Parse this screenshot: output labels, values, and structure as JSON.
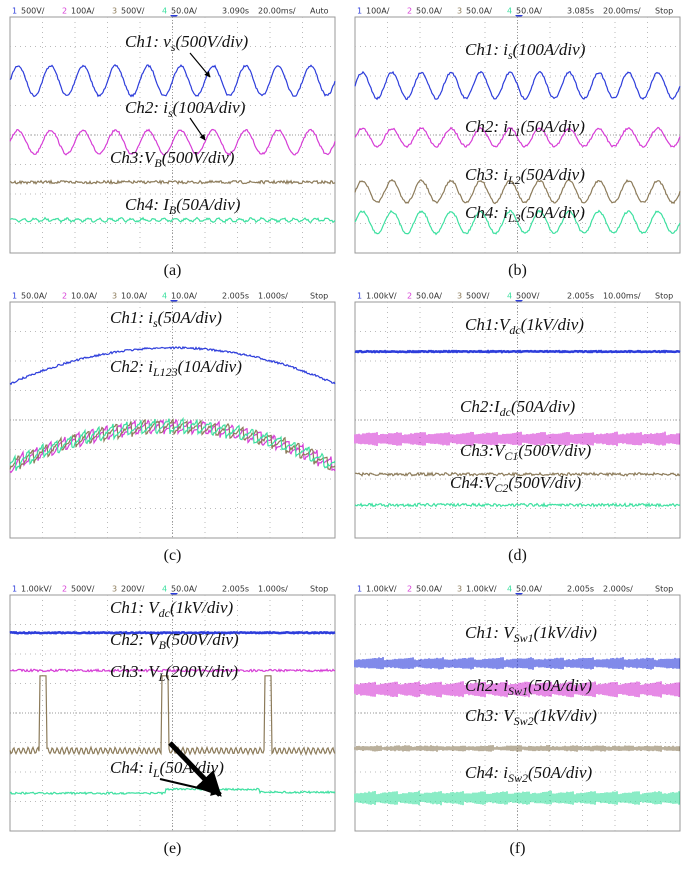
{
  "panels": [
    {
      "header": {
        "channels": [
          {
            "num": "1",
            "scale": "500V/"
          },
          {
            "num": "2",
            "scale": "100A/"
          },
          {
            "num": "3",
            "scale": "500V/"
          },
          {
            "num": "4",
            "scale": "50.0A/"
          }
        ],
        "timestamp": "3.090s",
        "timebase": "20.00ms/",
        "status": "Auto"
      },
      "labels": [
        {
          "prefix": "Ch1: ",
          "symbol": "v",
          "subscript": "s",
          "scale": "(500V/div)"
        },
        {
          "prefix": "Ch2: ",
          "symbol": "i",
          "subscript": "s",
          "scale": "(100A/div)"
        },
        {
          "prefix": "Ch3:",
          "symbol": "V",
          "subscript": "B",
          "scale": "(500V/div)"
        },
        {
          "prefix": "Ch4: ",
          "symbol": "I",
          "subscript": "B",
          "scale": "(50A/div)"
        }
      ],
      "caption": "(a)"
    },
    {
      "header": {
        "channels": [
          {
            "num": "1",
            "scale": "100A/"
          },
          {
            "num": "2",
            "scale": "50.0A/"
          },
          {
            "num": "3",
            "scale": "50.0A/"
          },
          {
            "num": "4",
            "scale": "50.0A/"
          }
        ],
        "timestamp": "3.085s",
        "timebase": "20.00ms/",
        "status": "Stop"
      },
      "labels": [
        {
          "prefix": "Ch1: ",
          "symbol": "i",
          "subscript": "s",
          "scale": "(100A/div)"
        },
        {
          "prefix": "Ch2: ",
          "symbol": "i",
          "subscript": "L1",
          "scale": "(50A/div)"
        },
        {
          "prefix": "Ch3: ",
          "symbol": "i",
          "subscript": "L2",
          "scale": "(50A/div)"
        },
        {
          "prefix": "Ch4: ",
          "symbol": "i",
          "subscript": "L3",
          "scale": "(50A/div)"
        }
      ],
      "caption": "(b)"
    },
    {
      "header": {
        "channels": [
          {
            "num": "1",
            "scale": "50.0A/"
          },
          {
            "num": "2",
            "scale": "10.0A/"
          },
          {
            "num": "3",
            "scale": "10.0A/"
          },
          {
            "num": "4",
            "scale": "10.0A/"
          }
        ],
        "timestamp": "2.005s",
        "timebase": "1.000s/",
        "status": "Stop"
      },
      "labels": [
        {
          "prefix": "Ch1: ",
          "symbol": "i",
          "subscript": "s",
          "scale": "(50A/div)"
        },
        {
          "prefix": "Ch2: ",
          "symbol": "i",
          "subscript": "L123",
          "scale": "(10A/div)"
        }
      ],
      "caption": "(c)"
    },
    {
      "header": {
        "channels": [
          {
            "num": "1",
            "scale": "1.00kV/"
          },
          {
            "num": "2",
            "scale": "50.0A/"
          },
          {
            "num": "3",
            "scale": "500V/"
          },
          {
            "num": "4",
            "scale": "500V/"
          }
        ],
        "timestamp": "2.005s",
        "timebase": "10.00ms/",
        "status": "Stop"
      },
      "labels": [
        {
          "prefix": "Ch1:",
          "symbol": "V",
          "subscript": "dc",
          "scale": "(1kV/div)"
        },
        {
          "prefix": "Ch2:",
          "symbol": "I",
          "subscript": "dc",
          "scale": "(50A/div)"
        },
        {
          "prefix": "Ch3:",
          "symbol": "V",
          "subscript": "C1",
          "scale": "(500V/div)"
        },
        {
          "prefix": "Ch4:",
          "symbol": "V",
          "subscript": "C2",
          "scale": "(500V/div)"
        }
      ],
      "caption": "(d)"
    },
    {
      "header": {
        "channels": [
          {
            "num": "1",
            "scale": "1.00kV/"
          },
          {
            "num": "2",
            "scale": "500V/"
          },
          {
            "num": "3",
            "scale": "200V/"
          },
          {
            "num": "4",
            "scale": "50.0A/"
          }
        ],
        "timestamp": "2.005s",
        "timebase": "1.000s/",
        "status": "Stop"
      },
      "labels": [
        {
          "prefix": "Ch1: ",
          "symbol": "V",
          "subscript": "dc",
          "scale": "(1kV/div)"
        },
        {
          "prefix": "Ch2: ",
          "symbol": "V",
          "subscript": "B",
          "scale": "(500V/div)"
        },
        {
          "prefix": "Ch3: ",
          "symbol": "V",
          "subscript": "L",
          "scale": "(200V/div)"
        },
        {
          "prefix": "Ch4: ",
          "symbol": "i",
          "subscript": "L",
          "scale": "(50A/div)"
        }
      ],
      "caption": "(e)"
    },
    {
      "header": {
        "channels": [
          {
            "num": "1",
            "scale": "1.00kV/"
          },
          {
            "num": "2",
            "scale": "50.0A/"
          },
          {
            "num": "3",
            "scale": "1.00kV/"
          },
          {
            "num": "4",
            "scale": "50.0A/"
          }
        ],
        "timestamp": "2.005s",
        "timebase": "2.000s/",
        "status": "Stop"
      },
      "labels": [
        {
          "prefix": "Ch1: ",
          "symbol": "V",
          "subscript": "Sw1",
          "scale": "(1kV/div)"
        },
        {
          "prefix": "Ch2: ",
          "symbol": "i",
          "subscript": "Sw1",
          "scale": "(50A/div)"
        },
        {
          "prefix": "Ch3: ",
          "symbol": "V",
          "subscript": "Sw2",
          "scale": "(1kV/div)"
        },
        {
          "prefix": "Ch4: ",
          "symbol": "i",
          "subscript": "Sw2",
          "scale": "(50A/div)"
        }
      ],
      "caption": "(f)"
    }
  ]
}
